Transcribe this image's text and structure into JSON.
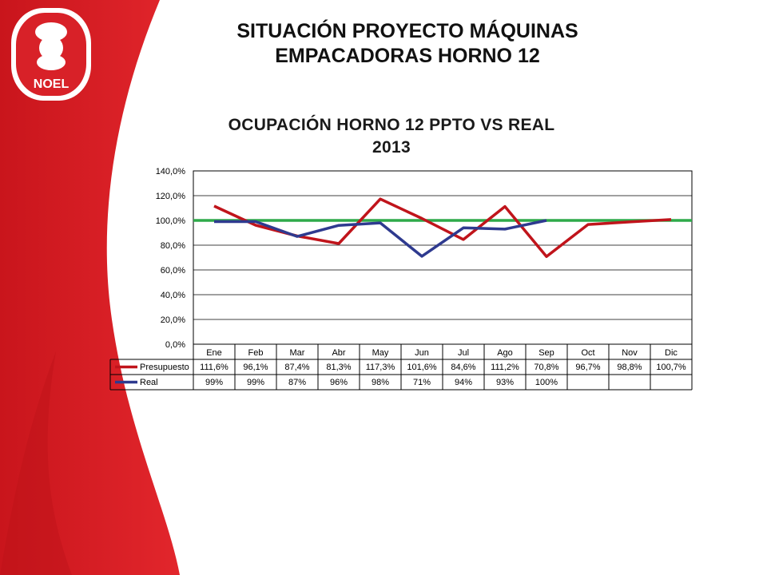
{
  "slide": {
    "title_line1": "SITUACIÓN PROYECTO  MÁQUINAS",
    "title_line2": "EMPACADORAS HORNO 12",
    "brand": "NOEL",
    "accent_color": "#d82128"
  },
  "chart_data": {
    "type": "line",
    "title_line1": "OCUPACIÓN HORNO 12 PPTO VS REAL",
    "title_line2": "2013",
    "categories": [
      "Ene",
      "Feb",
      "Mar",
      "Abr",
      "May",
      "Jun",
      "Jul",
      "Ago",
      "Sep",
      "Oct",
      "Nov",
      "Dic"
    ],
    "ylim": [
      0,
      140
    ],
    "yticks": [
      "0,0%",
      "20,0%",
      "40,0%",
      "60,0%",
      "80,0%",
      "100,0%",
      "120,0%",
      "140,0%"
    ],
    "grid": true,
    "reference_line": {
      "value": 100,
      "color": "#2eaa4a"
    },
    "series": [
      {
        "name": "Presupuesto",
        "color": "#c0141b",
        "values": [
          111.6,
          96.1,
          87.4,
          81.3,
          117.3,
          101.6,
          84.6,
          111.2,
          70.8,
          96.7,
          98.8,
          100.7
        ],
        "labels": [
          "111,6%",
          "96,1%",
          "87,4%",
          "81,3%",
          "117,3%",
          "101,6%",
          "84,6%",
          "111,2%",
          "70,8%",
          "96,7%",
          "98,8%",
          "100,7%"
        ]
      },
      {
        "name": "Real",
        "color": "#2e3a8f",
        "values": [
          99,
          99,
          87,
          96,
          98,
          71,
          94,
          93,
          100,
          null,
          null,
          null
        ],
        "labels": [
          "99%",
          "99%",
          "87%",
          "96%",
          "98%",
          "71%",
          "94%",
          "93%",
          "100%",
          "",
          "",
          ""
        ]
      }
    ]
  }
}
